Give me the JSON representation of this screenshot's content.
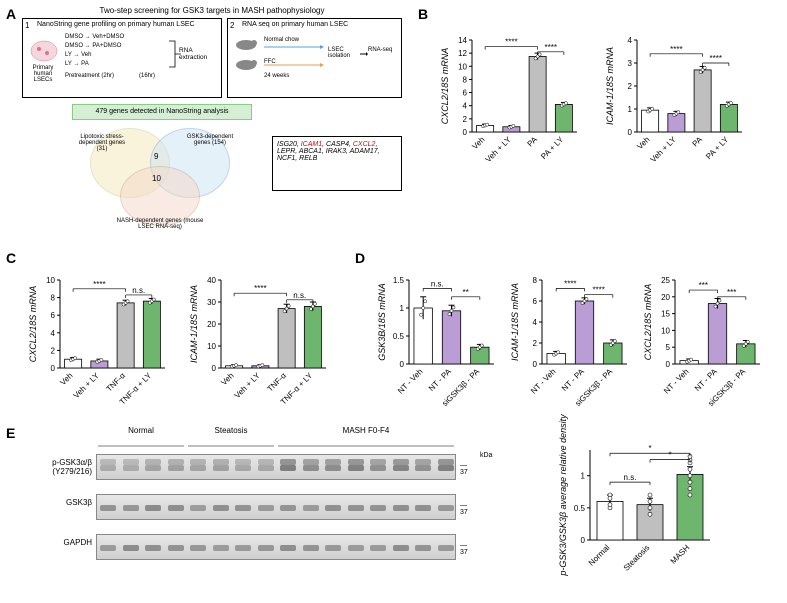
{
  "panelA": {
    "title": "Two-step screening for GSK3 targets in MASH pathophysiology",
    "box1": {
      "num": "1",
      "header": "NanoString gene profiling on primary human LSEC",
      "cell_label": "Primary human LSECs",
      "rows": [
        "DMSO",
        "DMSO",
        "LY",
        "LY"
      ],
      "rows2": [
        "Veh+DMSO",
        "PA+DMSO",
        "Veh",
        "PA"
      ],
      "pretreat": "Pretreatment (2hr)",
      "time": "(16hr)",
      "rna": "RNA extraction"
    },
    "box2": {
      "num": "2",
      "header": "RNA seq on primary human LSEC",
      "normal": "Normal chow",
      "ffc": "FFC",
      "weeks": "24 weeks",
      "lsec": "LSEC isolation",
      "rnaseq": "RNA-seq"
    },
    "venn": {
      "header": "479 genes detected in NanoString analysis",
      "lipotoxic": "Lipotoxic stress-dependent genes (31)",
      "gsk3": "GSK3-dependent genes (154)",
      "nash": "NASH-dependent genes (mouse LSEC RNA-seq)",
      "n_overlap_top": "9",
      "n_overlap_bottom": "10",
      "gene_list": "ISG20, ICAM1, CASP4, CXCL2, LEPR, ABCA1, IRAK3, ADAM17, NCF1, RELB",
      "highlight": [
        "ICAM1",
        "CXCL2"
      ]
    }
  },
  "colors": {
    "veh": "#ffffff",
    "vehly": "#b99dd4",
    "pa": "#bfbfbf",
    "paly": "#6eb56e",
    "tnf": "#bfbfbf",
    "tnfly": "#6eb56e",
    "normal": "#ffffff",
    "steatosis": "#bfbfbf",
    "mash": "#6eb56e",
    "axis": "#000000",
    "error": "#000000"
  },
  "panelB": {
    "charts": [
      {
        "ylabel": "CXCL2/18S mRNA",
        "ymax": 14,
        "ytick": 2,
        "bars": [
          {
            "label": "Veh",
            "val": 1.0,
            "err": 0.2,
            "fill": "veh"
          },
          {
            "label": "Veh + LY",
            "val": 0.8,
            "err": 0.2,
            "fill": "vehly"
          },
          {
            "label": "PA",
            "val": 11.5,
            "err": 0.5,
            "fill": "pa"
          },
          {
            "label": "PA + LY",
            "val": 4.2,
            "err": 0.3,
            "fill": "paly"
          }
        ],
        "sig": [
          {
            "from": 0,
            "to": 2,
            "y": 13.0,
            "text": "****"
          },
          {
            "from": 2,
            "to": 3,
            "y": 12.2,
            "text": "****"
          }
        ]
      },
      {
        "ylabel": "ICAM-1/18S mRNA",
        "ymax": 4,
        "ytick": 1,
        "bars": [
          {
            "label": "Veh",
            "val": 0.95,
            "err": 0.1,
            "fill": "veh"
          },
          {
            "label": "Veh + LY",
            "val": 0.8,
            "err": 0.1,
            "fill": "vehly"
          },
          {
            "label": "PA",
            "val": 2.7,
            "err": 0.15,
            "fill": "pa"
          },
          {
            "label": "PA + LY",
            "val": 1.2,
            "err": 0.1,
            "fill": "paly"
          }
        ],
        "sig": [
          {
            "from": 0,
            "to": 2,
            "y": 3.4,
            "text": "****"
          },
          {
            "from": 2,
            "to": 3,
            "y": 3.0,
            "text": "****"
          }
        ]
      }
    ]
  },
  "panelC": {
    "charts": [
      {
        "ylabel": "CXCL2/18S mRNA",
        "ymax": 10,
        "ytick": 2,
        "bars": [
          {
            "label": "Veh",
            "val": 1.0,
            "err": 0.2,
            "fill": "veh"
          },
          {
            "label": "Veh + LY",
            "val": 0.8,
            "err": 0.2,
            "fill": "vehly"
          },
          {
            "label": "TNF-α",
            "val": 7.4,
            "err": 0.3,
            "fill": "tnf"
          },
          {
            "label": "TNF-α + LY",
            "val": 7.6,
            "err": 0.3,
            "fill": "tnfly"
          }
        ],
        "sig": [
          {
            "from": 0,
            "to": 2,
            "y": 9.0,
            "text": "****"
          },
          {
            "from": 2,
            "to": 3,
            "y": 8.3,
            "text": "n.s."
          }
        ]
      },
      {
        "ylabel": "ICAM-1/18S mRNA",
        "ymax": 40,
        "ytick": 10,
        "bars": [
          {
            "label": "Veh",
            "val": 1.0,
            "err": 0.5,
            "fill": "veh"
          },
          {
            "label": "Veh + LY",
            "val": 1.0,
            "err": 0.5,
            "fill": "vehly"
          },
          {
            "label": "TNF-α",
            "val": 27,
            "err": 2,
            "fill": "tnf"
          },
          {
            "label": "TNF-α + LY",
            "val": 28,
            "err": 2,
            "fill": "tnfly"
          }
        ],
        "sig": [
          {
            "from": 0,
            "to": 2,
            "y": 34,
            "text": "****"
          },
          {
            "from": 2,
            "to": 3,
            "y": 31,
            "text": "n.s."
          }
        ]
      }
    ]
  },
  "panelD": {
    "charts": [
      {
        "ylabel": "GSK3B/18S mRNA",
        "ymax": 1.5,
        "ytick": 0.5,
        "bars": [
          {
            "label": "NT - Veh",
            "val": 1.0,
            "err": 0.2,
            "fill": "veh"
          },
          {
            "label": "NT - PA",
            "val": 0.95,
            "err": 0.1,
            "fill": "vehly"
          },
          {
            "label": "siGSK3β - PA",
            "val": 0.3,
            "err": 0.05,
            "fill": "paly"
          }
        ],
        "sig": [
          {
            "from": 0,
            "to": 1,
            "y": 1.35,
            "text": "n.s."
          },
          {
            "from": 1,
            "to": 2,
            "y": 1.2,
            "text": "**"
          }
        ]
      },
      {
        "ylabel": "ICAM-1/18S mRNA",
        "ymax": 8,
        "ytick": 2,
        "bars": [
          {
            "label": "NT - Veh",
            "val": 1.0,
            "err": 0.2,
            "fill": "veh"
          },
          {
            "label": "NT - PA",
            "val": 6.0,
            "err": 0.3,
            "fill": "vehly"
          },
          {
            "label": "siGSK3β - PA",
            "val": 2.0,
            "err": 0.3,
            "fill": "paly"
          }
        ],
        "sig": [
          {
            "from": 0,
            "to": 1,
            "y": 7.2,
            "text": "****"
          },
          {
            "from": 1,
            "to": 2,
            "y": 6.6,
            "text": "****"
          }
        ]
      },
      {
        "ylabel": "CXCL2/18S mRNA",
        "ymax": 25,
        "ytick": 5,
        "bars": [
          {
            "label": "NT - Veh",
            "val": 1.0,
            "err": 0.5,
            "fill": "veh"
          },
          {
            "label": "NT - PA",
            "val": 18,
            "err": 1.5,
            "fill": "vehly"
          },
          {
            "label": "siGSK3β - PA",
            "val": 6,
            "err": 1,
            "fill": "paly"
          }
        ],
        "sig": [
          {
            "from": 0,
            "to": 1,
            "y": 22,
            "text": "***"
          },
          {
            "from": 1,
            "to": 2,
            "y": 20,
            "text": "***"
          }
        ]
      }
    ]
  },
  "panelE": {
    "groups": [
      "Normal",
      "Steatosis",
      "MASH F0-F4"
    ],
    "group_counts": [
      4,
      4,
      8
    ],
    "lanes": 16,
    "rows": [
      {
        "label": "p-GSK3α/β (Y279/216)",
        "kda": "37",
        "double": true
      },
      {
        "label": "GSK3β",
        "kda": "37",
        "double": false
      },
      {
        "label": "GAPDH",
        "kda": "37",
        "double": false
      }
    ],
    "chart": {
      "ylabel": "p-GSK3/GSK3β average relative density",
      "ymax": 1.4,
      "ytick": 0.5,
      "bars": [
        {
          "label": "Normal",
          "val": 0.6,
          "err": 0.1,
          "fill": "normal",
          "points": [
            0.5,
            0.55,
            0.7,
            0.65
          ]
        },
        {
          "label": "Steatosis",
          "val": 0.55,
          "err": 0.1,
          "fill": "steatosis",
          "points": [
            0.4,
            0.5,
            0.6,
            0.7
          ]
        },
        {
          "label": "MASH",
          "val": 1.02,
          "err": 0.12,
          "fill": "mash",
          "points": [
            0.7,
            0.8,
            0.9,
            1.0,
            1.1,
            1.2,
            1.25,
            1.3
          ]
        }
      ],
      "sig": [
        {
          "from": 0,
          "to": 1,
          "y": 0.9,
          "text": "n.s."
        },
        {
          "from": 0,
          "to": 2,
          "y": 1.35,
          "text": "*"
        },
        {
          "from": 1,
          "to": 2,
          "y": 1.25,
          "text": "*"
        }
      ]
    }
  }
}
